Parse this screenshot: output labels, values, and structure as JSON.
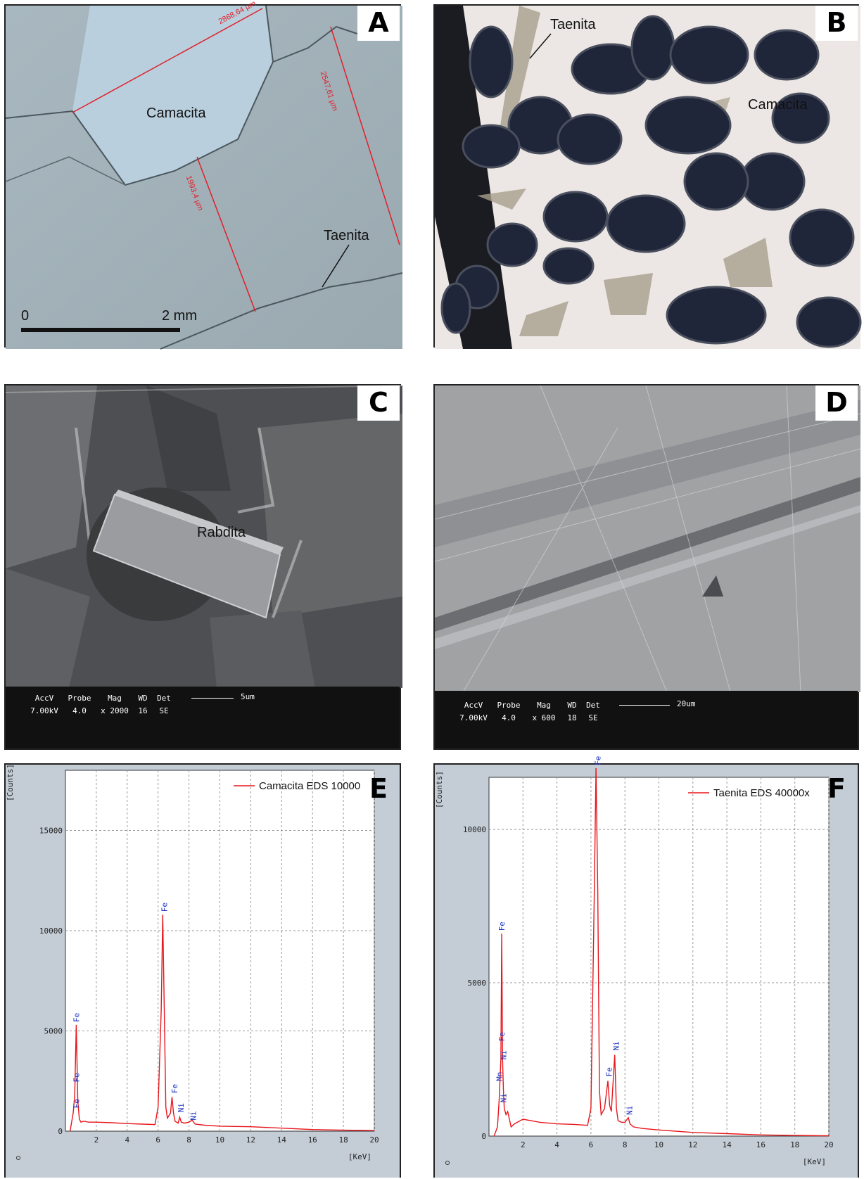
{
  "panels": {
    "a": {
      "letter": "A",
      "label_camacita": "Camacita",
      "label_taenita": "Taenita",
      "meas1": "2868,64 µm",
      "meas2": "2547,61 µm",
      "meas3": "1993,4 µm",
      "scale_zero": "0",
      "scale_end": "2 mm"
    },
    "b": {
      "letter": "B",
      "label_taenita": "Taenita",
      "label_camacita": "Camacita"
    },
    "c": {
      "letter": "C",
      "label_rabdita": "Rabdita",
      "sem_headers": [
        "AccV",
        "Probe",
        "Mag",
        "WD",
        "Det"
      ],
      "sem_values": [
        "7.00kV",
        "4.0",
        "x 2000",
        "16",
        "SE"
      ],
      "scale": "5um"
    },
    "d": {
      "letter": "D",
      "sem_headers": [
        "AccV",
        "Probe",
        "Mag",
        "WD",
        "Det"
      ],
      "sem_values": [
        "7.00kV",
        "4.0",
        "x 600",
        "18",
        "SE"
      ],
      "scale": "20um"
    },
    "e": {
      "letter": "E",
      "ylabel": "[Counts]",
      "xlabel": "[KeV]"
    },
    "f": {
      "letter": "F",
      "ylabel": "[Counts]",
      "xlabel": "[KeV]"
    }
  },
  "colors": {
    "spectrum": "#e8161b",
    "peak_label": "#1a2fbf",
    "eds_bg": "#c4cdd6"
  },
  "chart_data": [
    {
      "type": "line",
      "panel": "E",
      "series": [
        {
          "name": "Camacita EDS 10000",
          "x": [
            0.3,
            0.5,
            0.6,
            0.7,
            0.8,
            0.9,
            1.0,
            1.2,
            1.5,
            2,
            3,
            4,
            5,
            5.8,
            6.0,
            6.2,
            6.3,
            6.4,
            6.5,
            6.6,
            6.8,
            6.9,
            7.0,
            7.1,
            7.3,
            7.4,
            7.5,
            7.7,
            8.0,
            8.2,
            8.4,
            9,
            10,
            12,
            14,
            16,
            18,
            20
          ],
          "y": [
            0,
            900,
            1800,
            5300,
            1500,
            600,
            450,
            500,
            450,
            450,
            420,
            380,
            350,
            330,
            1200,
            6000,
            10800,
            6000,
            1200,
            650,
            900,
            1700,
            900,
            500,
            400,
            700,
            450,
            400,
            450,
            550,
            350,
            300,
            250,
            220,
            150,
            80,
            50,
            30
          ]
        }
      ],
      "peak_labels": [
        {
          "text": "Fe",
          "x": 0.7,
          "y": 5300
        },
        {
          "text": "Fe",
          "x": 0.7,
          "y": 2300
        },
        {
          "text": "Fe",
          "x": 0.7,
          "y": 1000
        },
        {
          "text": "Fe",
          "x": 6.4,
          "y": 10800
        },
        {
          "text": "Fe",
          "x": 7.06,
          "y": 1750
        },
        {
          "text": "Ni",
          "x": 7.47,
          "y": 800
        },
        {
          "text": "Ni",
          "x": 8.26,
          "y": 400
        }
      ],
      "xlim": [
        0,
        20
      ],
      "ylim": [
        0,
        18000
      ],
      "xticks": [
        "2",
        "4",
        "6",
        "8",
        "10",
        "12",
        "14",
        "16",
        "18",
        "20"
      ],
      "yticks": [
        "0",
        "5000",
        "10000",
        "15000"
      ],
      "xlabel": "[KeV]",
      "ylabel": "[Counts]",
      "grid": true,
      "legend": "top-right"
    },
    {
      "type": "line",
      "panel": "F",
      "series": [
        {
          "name": "Taenita EDS 40000x",
          "x": [
            0.3,
            0.5,
            0.6,
            0.7,
            0.75,
            0.8,
            0.85,
            0.9,
            1.0,
            1.1,
            1.3,
            1.5,
            2,
            3,
            4,
            5,
            5.8,
            6.0,
            6.2,
            6.3,
            6.4,
            6.5,
            6.6,
            6.8,
            7.0,
            7.1,
            7.2,
            7.4,
            7.5,
            7.6,
            7.8,
            8.0,
            8.2,
            8.3,
            8.5,
            9,
            10,
            12,
            14,
            16,
            18,
            20
          ],
          "y": [
            0,
            300,
            1200,
            2500,
            6600,
            2500,
            1500,
            900,
            700,
            800,
            300,
            400,
            550,
            450,
            400,
            380,
            350,
            900,
            8000,
            12000,
            8000,
            1500,
            700,
            900,
            1800,
            1000,
            800,
            2650,
            900,
            500,
            450,
            450,
            600,
            400,
            300,
            250,
            200,
            120,
            80,
            40,
            20,
            10
          ]
        }
      ],
      "peak_labels": [
        {
          "text": "Fe",
          "x": 0.75,
          "y": 6600
        },
        {
          "text": "Fe",
          "x": 0.75,
          "y": 3000
        },
        {
          "text": "Ni",
          "x": 0.85,
          "y": 2400
        },
        {
          "text": "Mn",
          "x": 0.6,
          "y": 1700
        },
        {
          "text": "Ni",
          "x": 0.85,
          "y": 1000
        },
        {
          "text": "Fe",
          "x": 6.4,
          "y": 12000
        },
        {
          "text": "Fe",
          "x": 7.06,
          "y": 1850
        },
        {
          "text": "Ni",
          "x": 7.47,
          "y": 2700
        },
        {
          "text": "Ni",
          "x": 8.26,
          "y": 600
        }
      ],
      "xlim": [
        0,
        20
      ],
      "ylim": [
        0,
        11700
      ],
      "xticks": [
        "2",
        "4",
        "6",
        "8",
        "10",
        "12",
        "14",
        "16",
        "18",
        "20"
      ],
      "yticks": [
        "0",
        "5000",
        "10000"
      ],
      "xlabel": "[KeV]",
      "ylabel": "[Counts]",
      "grid": true,
      "legend": "top-right"
    }
  ]
}
